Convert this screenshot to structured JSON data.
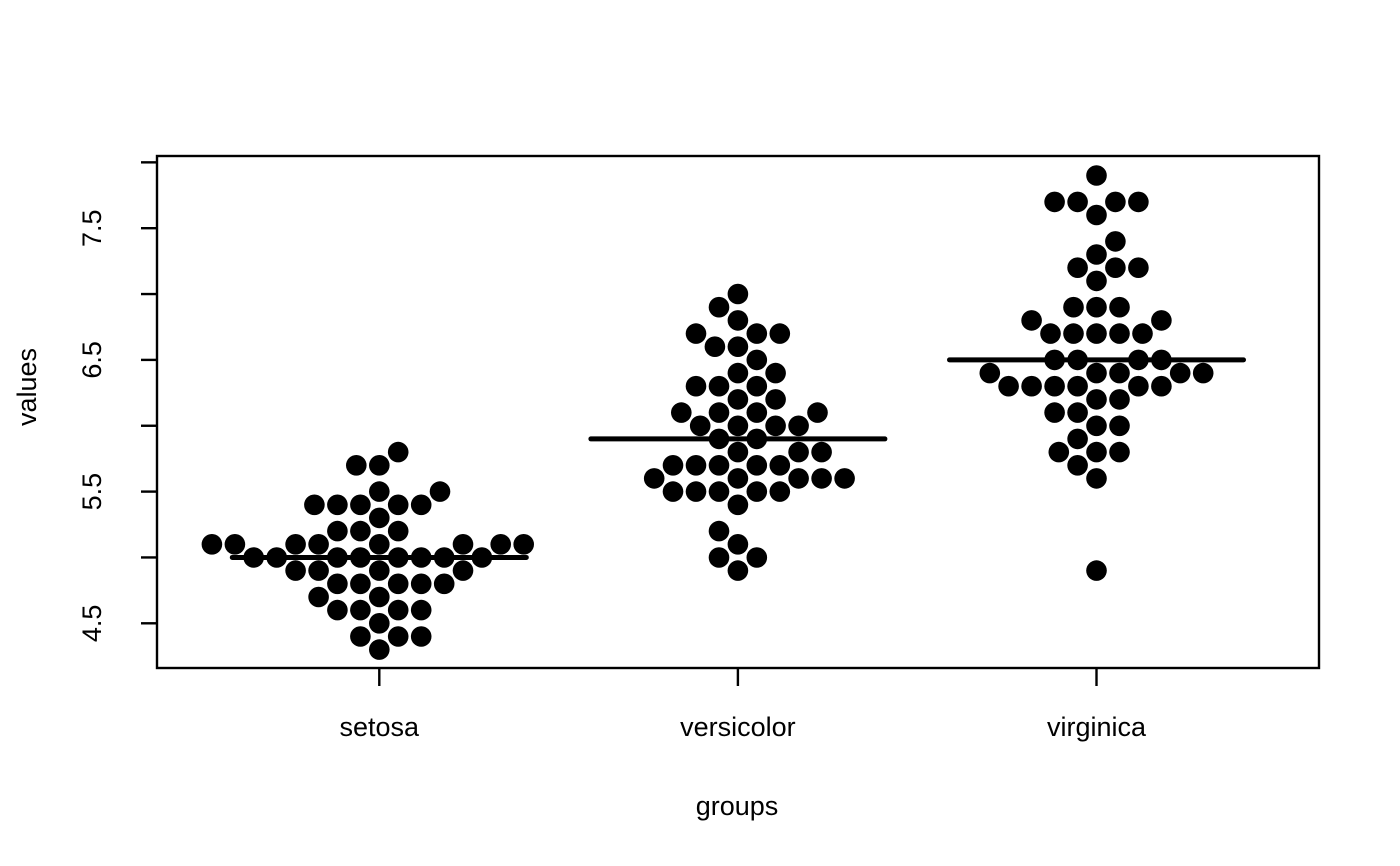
{
  "chart_data": {
    "type": "scatter",
    "subtype": "beeswarm",
    "title": "",
    "xlabel": "groups",
    "ylabel": "values",
    "categories": [
      "setosa",
      "versicolor",
      "virginica"
    ],
    "series": [
      {
        "name": "setosa",
        "values": [
          5.1,
          4.9,
          4.7,
          4.6,
          5.0,
          5.4,
          4.6,
          5.0,
          4.4,
          4.9,
          5.4,
          4.8,
          4.8,
          4.3,
          5.8,
          5.7,
          5.4,
          5.1,
          5.7,
          5.1,
          5.4,
          5.1,
          4.6,
          5.1,
          4.8,
          5.0,
          5.0,
          5.2,
          5.2,
          4.7,
          4.8,
          5.4,
          5.2,
          5.5,
          4.9,
          5.0,
          5.5,
          4.9,
          4.4,
          5.1,
          5.0,
          4.5,
          4.4,
          5.0,
          5.1,
          4.8,
          5.1,
          4.6,
          5.3,
          5.0
        ]
      },
      {
        "name": "versicolor",
        "values": [
          7.0,
          6.4,
          6.9,
          5.5,
          6.5,
          5.7,
          6.3,
          4.9,
          6.6,
          5.2,
          5.0,
          5.9,
          6.0,
          6.1,
          5.6,
          6.7,
          5.6,
          5.8,
          6.2,
          5.6,
          5.9,
          6.1,
          6.3,
          6.1,
          6.4,
          6.6,
          6.8,
          6.7,
          6.0,
          5.7,
          5.5,
          5.5,
          5.8,
          6.0,
          5.4,
          6.0,
          6.7,
          6.3,
          5.6,
          5.5,
          5.5,
          6.1,
          5.8,
          5.0,
          5.6,
          5.7,
          5.7,
          6.2,
          5.1,
          5.7
        ]
      },
      {
        "name": "virginica",
        "values": [
          6.3,
          5.8,
          7.1,
          6.3,
          6.5,
          7.6,
          4.9,
          7.3,
          6.7,
          7.2,
          6.5,
          6.4,
          6.8,
          5.7,
          5.8,
          6.4,
          6.5,
          7.7,
          7.7,
          6.0,
          6.9,
          5.6,
          7.7,
          6.3,
          6.7,
          7.2,
          6.2,
          6.1,
          6.4,
          7.2,
          7.4,
          7.9,
          6.4,
          6.3,
          6.1,
          7.7,
          6.3,
          6.4,
          6.0,
          6.9,
          6.7,
          6.9,
          5.8,
          6.8,
          6.7,
          6.7,
          6.3,
          6.5,
          6.2,
          5.9
        ]
      }
    ],
    "medians": [
      5.0,
      5.9,
      6.5
    ],
    "ylim": [
      4.16,
      8.05
    ],
    "yticks": [
      4.5,
      5.0,
      5.5,
      6.0,
      6.5,
      7.0,
      7.5,
      8.0
    ],
    "ytick_labels": [
      "4.5",
      "5.5",
      "6.5",
      "7.5"
    ],
    "grid": false,
    "legend": "none",
    "point_color": "#000000",
    "axis_color": "#000000",
    "background_color": "#ffffff"
  }
}
